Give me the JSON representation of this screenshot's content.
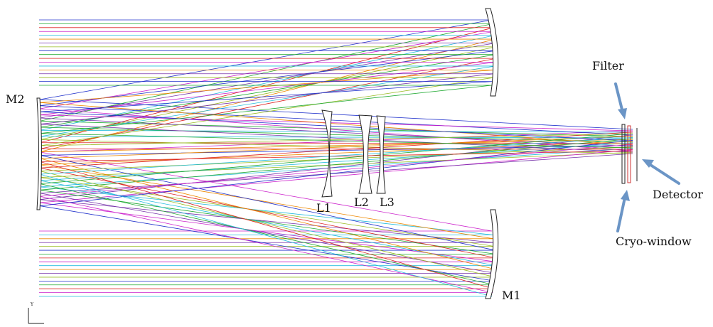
{
  "labels": {
    "m2": "M2",
    "m1": "M1",
    "l1": "L1",
    "l2": "L2",
    "l3": "L3",
    "filter": "Filter",
    "detector": "Detector",
    "cryo_window": "Cryo-window",
    "axis": "Y"
  }
}
